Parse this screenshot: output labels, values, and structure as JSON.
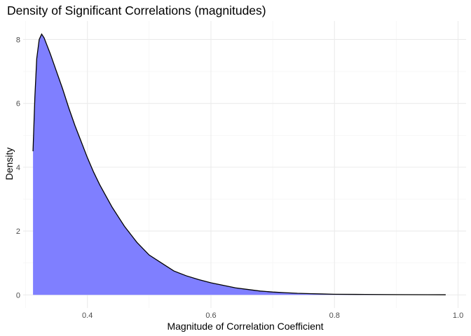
{
  "chart_data": {
    "type": "area",
    "title": "Density of Significant Correlations (magnitudes)",
    "xlabel": "Magnitude of Correlation Coefficient",
    "ylabel": "Density",
    "xlim": [
      0.296,
      1.013
    ],
    "ylim": [
      -0.41,
      8.58
    ],
    "x_ticks": [
      0.4,
      0.6,
      0.8,
      1.0
    ],
    "x_tick_labels": [
      "0.4",
      "0.6",
      "0.8",
      "1.0"
    ],
    "y_ticks": [
      0,
      2,
      4,
      6,
      8
    ],
    "y_tick_labels": [
      "0",
      "2",
      "4",
      "6",
      "8"
    ],
    "grid": true,
    "legend": "none",
    "fill_color": "#7f7fff",
    "line_color": "#000000",
    "series": [
      {
        "x": [
          0.312,
          0.315,
          0.318,
          0.322,
          0.326,
          0.33,
          0.335,
          0.34,
          0.35,
          0.36,
          0.37,
          0.38,
          0.39,
          0.4,
          0.41,
          0.42,
          0.43,
          0.44,
          0.45,
          0.46,
          0.47,
          0.48,
          0.49,
          0.5,
          0.52,
          0.54,
          0.56,
          0.58,
          0.6,
          0.62,
          0.64,
          0.66,
          0.68,
          0.7,
          0.72,
          0.74,
          0.76,
          0.78,
          0.8,
          0.85,
          0.9,
          0.95,
          0.98
        ],
        "y": [
          4.5,
          6.2,
          7.4,
          8.0,
          8.17,
          8.05,
          7.8,
          7.55,
          7.0,
          6.45,
          5.85,
          5.3,
          4.8,
          4.3,
          3.85,
          3.45,
          3.1,
          2.75,
          2.45,
          2.15,
          1.9,
          1.65,
          1.45,
          1.25,
          1.0,
          0.75,
          0.6,
          0.48,
          0.38,
          0.3,
          0.22,
          0.17,
          0.12,
          0.09,
          0.07,
          0.05,
          0.04,
          0.03,
          0.02,
          0.015,
          0.01,
          0.007,
          0.005
        ]
      }
    ]
  }
}
